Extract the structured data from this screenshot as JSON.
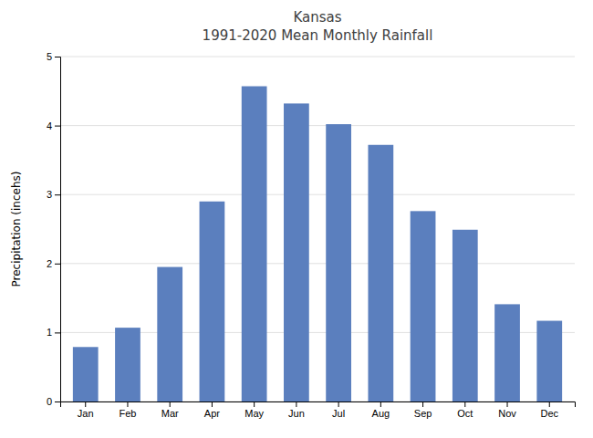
{
  "chart_data": {
    "type": "bar",
    "title": "Kansas",
    "subtitle": "1991-2020 Mean Monthly Rainfall",
    "categories": [
      "Jan",
      "Feb",
      "Mar",
      "Apr",
      "May",
      "Jun",
      "Jul",
      "Aug",
      "Sep",
      "Oct",
      "Nov",
      "Dec"
    ],
    "values": [
      0.79,
      1.07,
      1.95,
      2.9,
      4.57,
      4.32,
      4.02,
      3.72,
      2.76,
      2.49,
      1.41,
      1.17
    ],
    "color": "#5b7fbe",
    "y_label": "Precipitation (incehs)",
    "ylim": [
      0,
      5
    ],
    "yticks": [
      0,
      1,
      2,
      3,
      4,
      5
    ],
    "grid": true
  }
}
